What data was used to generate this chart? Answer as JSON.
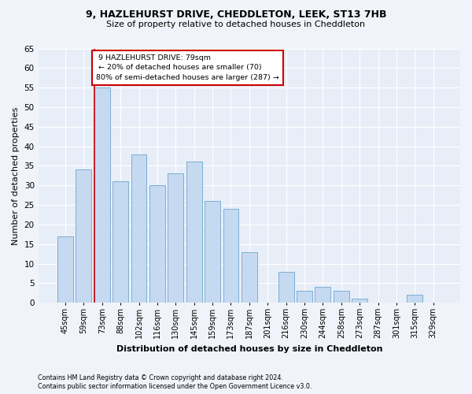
{
  "title1": "9, HAZLEHURST DRIVE, CHEDDLETON, LEEK, ST13 7HB",
  "title2": "Size of property relative to detached houses in Cheddleton",
  "xlabel": "Distribution of detached houses by size in Cheddleton",
  "ylabel": "Number of detached properties",
  "categories": [
    "45sqm",
    "59sqm",
    "73sqm",
    "88sqm",
    "102sqm",
    "116sqm",
    "130sqm",
    "145sqm",
    "159sqm",
    "173sqm",
    "187sqm",
    "201sqm",
    "216sqm",
    "230sqm",
    "244sqm",
    "258sqm",
    "273sqm",
    "287sqm",
    "301sqm",
    "315sqm",
    "329sqm"
  ],
  "values": [
    17,
    34,
    55,
    31,
    38,
    30,
    33,
    36,
    26,
    24,
    13,
    0,
    8,
    3,
    4,
    3,
    1,
    0,
    0,
    2,
    0
  ],
  "bar_color": "#c5d9f0",
  "bar_edge_color": "#7bafd4",
  "marker_label": "9 HAZLEHURST DRIVE: 79sqm",
  "marker_pct_smaller": "20% of detached houses are smaller (70)",
  "marker_pct_larger": "80% of semi-detached houses are larger (287)",
  "marker_line_color": "#cc0000",
  "annotation_box_color": "#cc0000",
  "ylim": [
    0,
    65
  ],
  "yticks": [
    0,
    5,
    10,
    15,
    20,
    25,
    30,
    35,
    40,
    45,
    50,
    55,
    60,
    65
  ],
  "footnote1": "Contains HM Land Registry data © Crown copyright and database right 2024.",
  "footnote2": "Contains public sector information licensed under the Open Government Licence v3.0.",
  "fig_bg_color": "#f0f4fa",
  "plot_bg_color": "#e8eef8"
}
